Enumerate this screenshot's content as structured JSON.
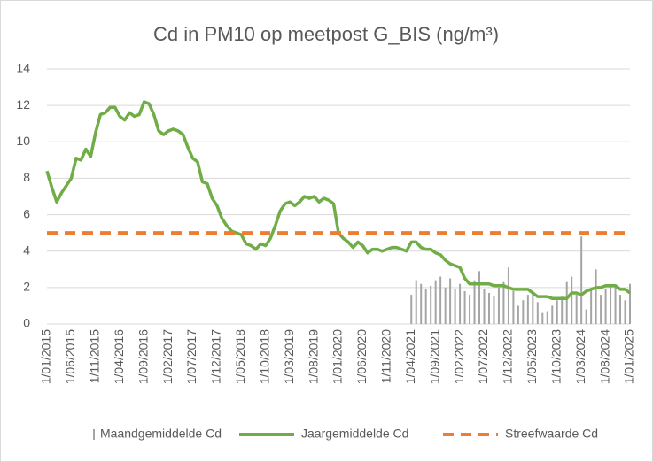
{
  "chart_data": {
    "type": "combo",
    "title": "Cd in PM10 op meetpost G_BIS (ng/m³)",
    "categories": [
      "1/01/2015",
      null,
      null,
      null,
      null,
      "1/06/2015",
      null,
      null,
      null,
      null,
      "1/11/2015",
      null,
      null,
      null,
      null,
      "1/04/2016",
      null,
      null,
      null,
      null,
      "1/09/2016",
      null,
      null,
      null,
      null,
      "1/02/2017",
      null,
      null,
      null,
      null,
      "1/07/2017",
      null,
      null,
      null,
      null,
      "1/12/2017",
      null,
      null,
      null,
      null,
      "1/05/2018",
      null,
      null,
      null,
      null,
      "1/10/2018",
      null,
      null,
      null,
      null,
      "1/03/2019",
      null,
      null,
      null,
      null,
      "1/08/2019",
      null,
      null,
      null,
      null,
      "1/01/2020",
      null,
      null,
      null,
      null,
      "1/06/2020",
      null,
      null,
      null,
      null,
      "1/11/2020",
      null,
      null,
      null,
      null,
      "1/04/2021",
      null,
      null,
      null,
      null,
      "1/09/2021",
      null,
      null,
      null,
      null,
      "1/02/2022",
      null,
      null,
      null,
      null,
      "1/07/2022",
      null,
      null,
      null,
      null,
      "1/12/2022",
      null,
      null,
      null,
      null,
      "1/05/2023",
      null,
      null,
      null,
      null,
      "1/10/2023",
      null,
      null,
      null,
      null,
      "1/03/2024",
      null,
      null,
      null,
      null,
      "1/08/2024",
      null,
      null,
      null,
      null,
      "1/01/2025"
    ],
    "series": [
      {
        "name": "Maandgemiddelde Cd",
        "type": "bar",
        "color": "#a5a5a5",
        "values": [
          null,
          null,
          null,
          null,
          null,
          null,
          null,
          null,
          null,
          null,
          null,
          null,
          null,
          null,
          null,
          null,
          null,
          null,
          null,
          null,
          null,
          null,
          null,
          null,
          null,
          null,
          null,
          null,
          null,
          null,
          null,
          null,
          null,
          null,
          null,
          null,
          null,
          null,
          null,
          null,
          null,
          null,
          null,
          null,
          null,
          null,
          null,
          null,
          null,
          null,
          null,
          null,
          null,
          null,
          null,
          null,
          null,
          null,
          null,
          null,
          null,
          null,
          null,
          null,
          null,
          null,
          null,
          null,
          null,
          null,
          null,
          null,
          null,
          null,
          null,
          1.6,
          2.4,
          2.2,
          1.9,
          2.1,
          2.4,
          2.6,
          2.0,
          2.5,
          1.9,
          2.2,
          1.8,
          1.6,
          2.4,
          2.9,
          1.9,
          1.7,
          1.5,
          2.0,
          2.3,
          3.1,
          1.8,
          1.0,
          1.3,
          1.6,
          1.8,
          1.2,
          0.6,
          0.7,
          1.0,
          1.3,
          1.5,
          2.3,
          2.6,
          1.6,
          4.8,
          0.8,
          2.0,
          3.0,
          1.6,
          1.9,
          2.1,
          2.1,
          1.6,
          1.3,
          2.2
        ]
      },
      {
        "name": "Jaargemiddelde Cd",
        "type": "line",
        "color": "#70ad47",
        "values": [
          8.4,
          7.5,
          6.7,
          7.2,
          7.6,
          8.0,
          9.1,
          9.0,
          9.6,
          9.2,
          10.5,
          11.5,
          11.6,
          11.9,
          11.9,
          11.4,
          11.2,
          11.6,
          11.4,
          11.5,
          12.2,
          12.1,
          11.5,
          10.6,
          10.4,
          10.6,
          10.7,
          10.6,
          10.4,
          9.7,
          9.1,
          8.9,
          7.8,
          7.7,
          6.9,
          6.5,
          5.8,
          5.4,
          5.1,
          5.0,
          4.9,
          4.4,
          4.3,
          4.1,
          4.4,
          4.3,
          4.7,
          5.4,
          6.2,
          6.6,
          6.7,
          6.5,
          6.7,
          7.0,
          6.9,
          7.0,
          6.7,
          6.9,
          6.8,
          6.6,
          5.0,
          4.7,
          4.5,
          4.2,
          4.5,
          4.3,
          3.9,
          4.1,
          4.1,
          4.0,
          4.1,
          4.2,
          4.2,
          4.1,
          4.0,
          4.5,
          4.5,
          4.2,
          4.1,
          4.1,
          3.9,
          3.8,
          3.5,
          3.3,
          3.2,
          3.1,
          2.5,
          2.2,
          2.2,
          2.2,
          2.2,
          2.2,
          2.1,
          2.1,
          2.1,
          2.0,
          1.9,
          1.9,
          1.9,
          1.9,
          1.7,
          1.5,
          1.5,
          1.5,
          1.4,
          1.4,
          1.4,
          1.4,
          1.7,
          1.7,
          1.6,
          1.8,
          1.9,
          2.0,
          2.0,
          2.1,
          2.1,
          2.1,
          1.9,
          1.9,
          1.7
        ]
      },
      {
        "name": "Streefwaarde Cd",
        "type": "line",
        "dashed": true,
        "color": "#ed7d31",
        "values": [
          5,
          5,
          5,
          5,
          5,
          5,
          5,
          5,
          5,
          5,
          5,
          5,
          5,
          5,
          5,
          5,
          5,
          5,
          5,
          5,
          5,
          5,
          5,
          5,
          5,
          5,
          5,
          5,
          5,
          5,
          5,
          5,
          5,
          5,
          5,
          5,
          5,
          5,
          5,
          5,
          5,
          5,
          5,
          5,
          5,
          5,
          5,
          5,
          5,
          5,
          5,
          5,
          5,
          5,
          5,
          5,
          5,
          5,
          5,
          5,
          5,
          5,
          5,
          5,
          5,
          5,
          5,
          5,
          5,
          5,
          5,
          5,
          5,
          5,
          5,
          5,
          5,
          5,
          5,
          5,
          5,
          5,
          5,
          5,
          5,
          5,
          5,
          5,
          5,
          5,
          5,
          5,
          5,
          5,
          5,
          5,
          5,
          5,
          5,
          5,
          5,
          5,
          5,
          5,
          5,
          5,
          5,
          5,
          5,
          5,
          5,
          5,
          5,
          5,
          5,
          5,
          5,
          5,
          5,
          5,
          5
        ]
      }
    ],
    "ylim": [
      0,
      14
    ],
    "yticks": [
      0,
      2,
      4,
      6,
      8,
      10,
      12,
      14
    ],
    "grid": true,
    "legend": "bottom"
  }
}
